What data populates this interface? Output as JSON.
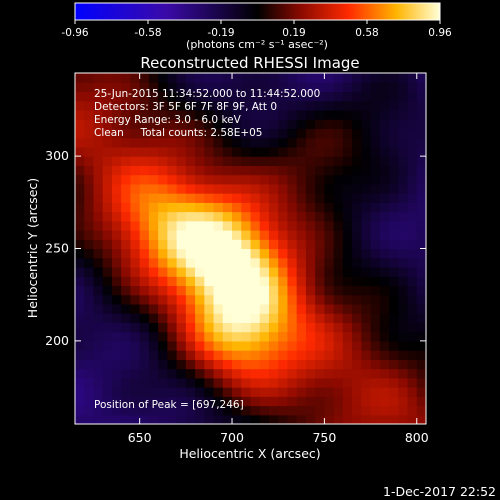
{
  "chart_data": {
    "type": "heatmap",
    "title": "Reconstructed RHESSI Image",
    "xlabel": "Heliocentric X (arcsec)",
    "ylabel": "Heliocentric Y (arcsec)",
    "xlim": [
      615,
      805
    ],
    "ylim": [
      155,
      345
    ],
    "xticks": [
      650,
      700,
      750,
      800
    ],
    "yticks": [
      200,
      250,
      300
    ],
    "colorbar": {
      "label": "(photons cm⁻² s⁻¹ asec⁻²)",
      "min": -0.96,
      "max": 0.96,
      "ticks": [
        "-0.96",
        "-0.58",
        "-0.19",
        "0.19",
        "0.58",
        "0.96"
      ]
    },
    "annotations": [
      "25-Jun-2015 11:34:52.000 to 11:44:52.000",
      "Detectors: 3F 5F 6F 7F 8F 9F, Att 0",
      "Energy Range: 3.0 - 6.0 keV",
      "Clean     Total counts: 2.58E+05"
    ],
    "peak_label": "Position of Peak = [697,246]",
    "peak_position": [
      697,
      246
    ],
    "sources": [
      {
        "x": 697,
        "y": 246,
        "amplitude": 0.95
      },
      {
        "x": 705,
        "y": 205,
        "amplitude": 0.85
      },
      {
        "x": 660,
        "y": 262,
        "amplitude": 0.55
      },
      {
        "x": 745,
        "y": 295,
        "amplitude": 0.4
      },
      {
        "x": 780,
        "y": 320,
        "amplitude": 0.3
      }
    ]
  },
  "footer": {
    "date": "1-Dec-2017 22:52"
  }
}
